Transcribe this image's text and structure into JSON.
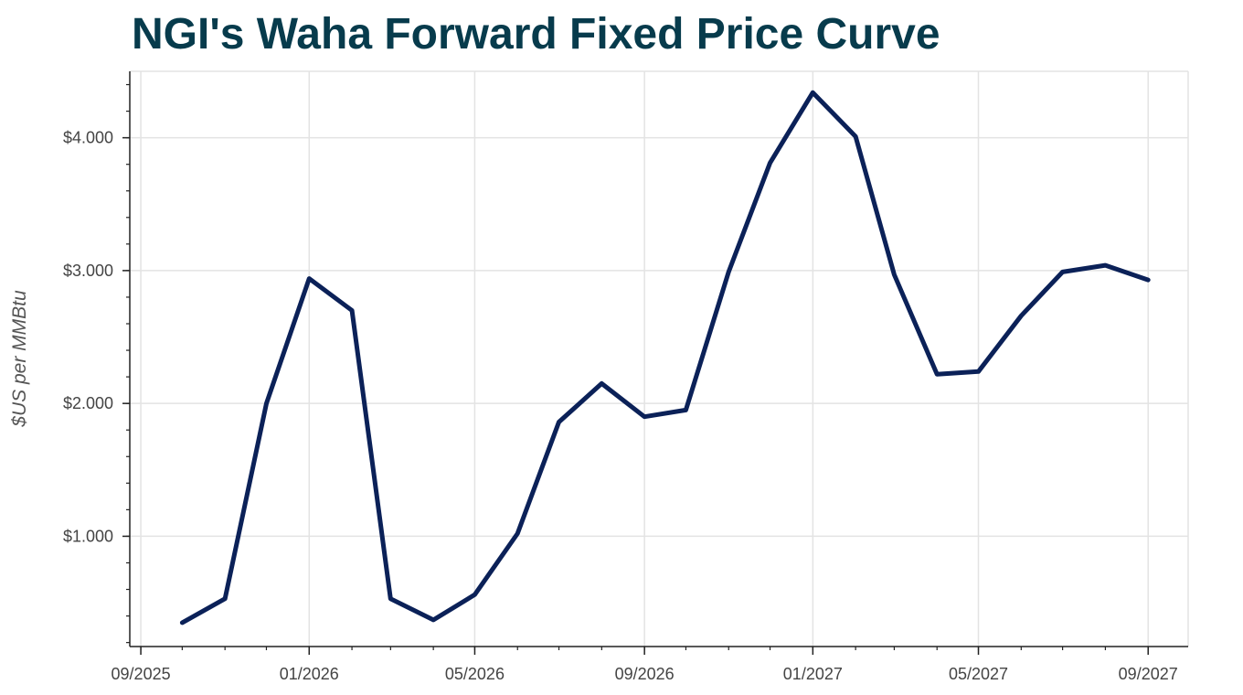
{
  "colors": {
    "title": "#073b4c",
    "line": "#0b2158",
    "grid": "#e3e3e3",
    "axis": "#222222",
    "tick_text": "#444444"
  },
  "chart_data": {
    "type": "line",
    "title": "NGI's Waha Forward Fixed Price Curve",
    "xlabel": "",
    "ylabel": "$US per MMBtu",
    "grid": true,
    "x_range": [
      "2025-08-24",
      "2027-09-30"
    ],
    "ylim": [
      0.17,
      4.5
    ],
    "x_ticks": [
      {
        "date": "2025-09-01",
        "label": "09/2025"
      },
      {
        "date": "2026-01-01",
        "label": "01/2026"
      },
      {
        "date": "2026-05-01",
        "label": "05/2026"
      },
      {
        "date": "2026-09-01",
        "label": "09/2026"
      },
      {
        "date": "2027-01-01",
        "label": "01/2027"
      },
      {
        "date": "2027-05-01",
        "label": "05/2027"
      },
      {
        "date": "2027-09-01",
        "label": "09/2027"
      }
    ],
    "y_ticks": [
      {
        "value": 1,
        "label": "$1.000"
      },
      {
        "value": 2,
        "label": "$2.000"
      },
      {
        "value": 3,
        "label": "$3.000"
      },
      {
        "value": 4,
        "label": "$4.000"
      }
    ],
    "y_minor_step": 0.2,
    "series": [
      {
        "name": "Waha Forward Fixed Price",
        "x": [
          "2025-10-01",
          "2025-11-01",
          "2025-12-01",
          "2026-01-01",
          "2026-02-01",
          "2026-03-01",
          "2026-04-01",
          "2026-05-01",
          "2026-06-01",
          "2026-07-01",
          "2026-08-01",
          "2026-09-01",
          "2026-10-01",
          "2026-11-01",
          "2026-12-01",
          "2027-01-01",
          "2027-02-01",
          "2027-03-01",
          "2027-04-01",
          "2027-05-01",
          "2027-06-01",
          "2027-07-01",
          "2027-08-01",
          "2027-09-01"
        ],
        "values": [
          0.35,
          0.53,
          2.0,
          2.94,
          2.7,
          0.53,
          0.37,
          0.56,
          1.02,
          1.86,
          2.15,
          1.9,
          1.95,
          2.99,
          3.81,
          4.34,
          4.01,
          2.97,
          2.22,
          2.24,
          2.66,
          2.99,
          3.04,
          2.93
        ]
      }
    ]
  }
}
